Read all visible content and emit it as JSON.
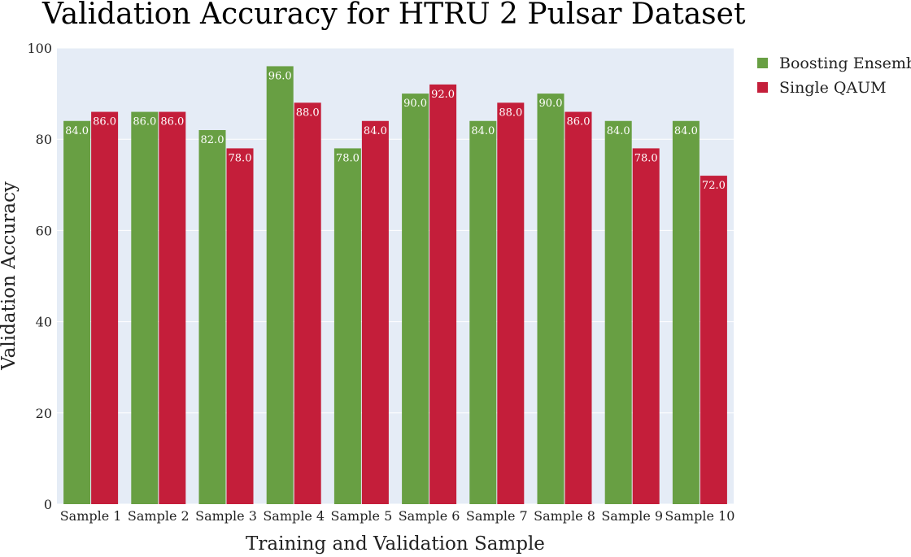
{
  "chart_data": {
    "type": "bar",
    "title": "Validation Accuracy for HTRU 2 Pulsar Dataset",
    "xlabel": "Training and Validation Sample",
    "ylabel": "Validation Accuracy",
    "categories": [
      "Sample 1",
      "Sample 2",
      "Sample 3",
      "Sample 4",
      "Sample 5",
      "Sample 6",
      "Sample 7",
      "Sample 8",
      "Sample 9",
      "Sample 10"
    ],
    "series": [
      {
        "name": "Boosting Ensemble",
        "color": "#689f43",
        "values": [
          84.0,
          86.0,
          82.0,
          96.0,
          78.0,
          90.0,
          84.0,
          90.0,
          84.0,
          84.0
        ]
      },
      {
        "name": "Single QAUM",
        "color": "#c41e3a",
        "values": [
          86.0,
          86.0,
          78.0,
          88.0,
          84.0,
          92.0,
          88.0,
          86.0,
          78.0,
          72.0
        ]
      }
    ],
    "ylim": [
      0,
      100
    ],
    "yticks": [
      0,
      20,
      40,
      60,
      80,
      100
    ],
    "grid": true,
    "legend_position": "top-right",
    "plot_background": "#e5ecf6"
  }
}
